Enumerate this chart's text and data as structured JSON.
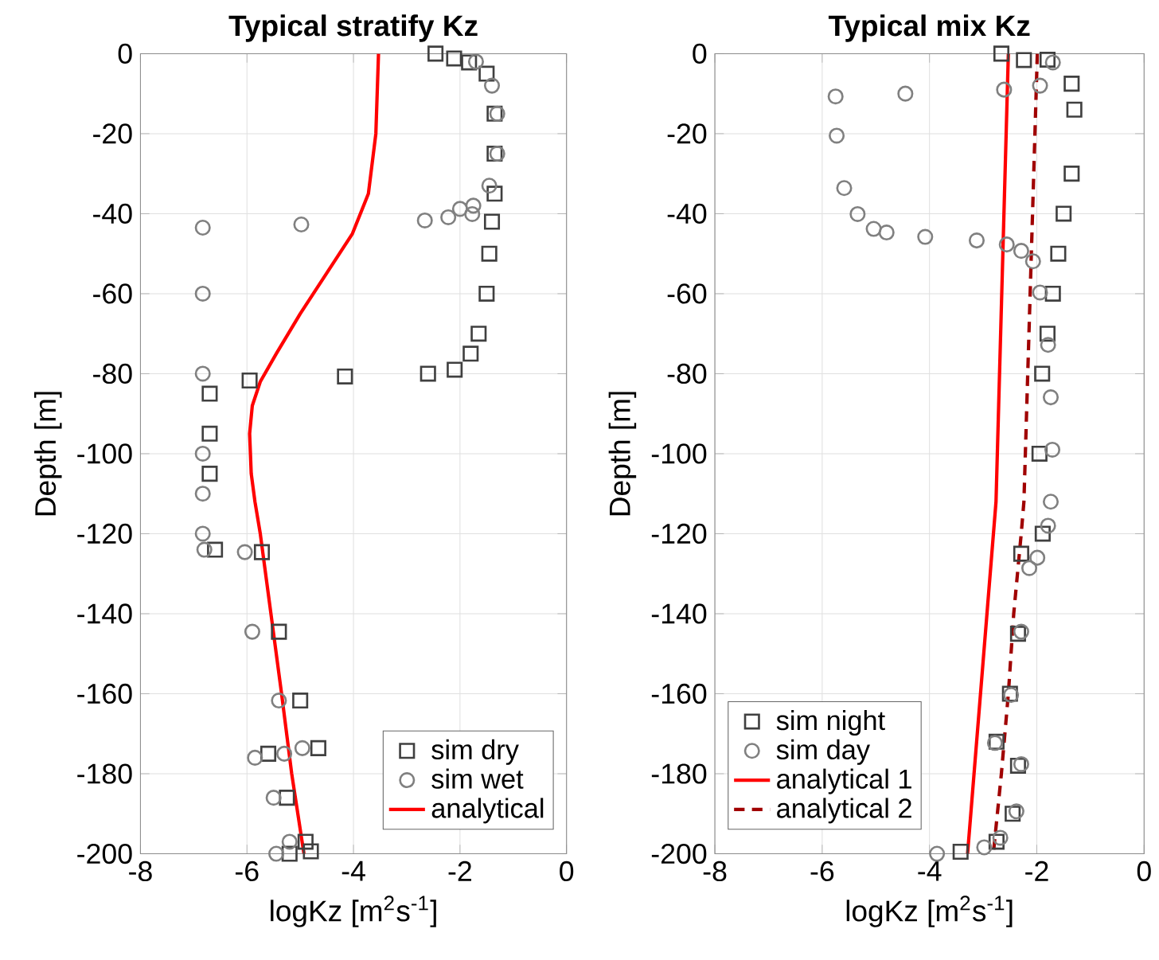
{
  "chart_data": [
    {
      "type": "scatter",
      "title": "Typical stratify Kz",
      "xlabel": "logKz [m$^{2}$s$^{-1}$]",
      "ylabel": "Depth [m]",
      "xlim": [
        -8,
        0
      ],
      "ylim": [
        -200,
        0
      ],
      "xticks": [
        -8,
        -6,
        -4,
        -2,
        0
      ],
      "yticks": [
        0,
        -20,
        -40,
        -60,
        -80,
        -100,
        -120,
        -140,
        -160,
        -180,
        -200
      ],
      "grid": true,
      "legend": "bottom right",
      "series": [
        {
          "name": "sim dry",
          "marker": "square",
          "color": "#404040",
          "x": [
            -2.46,
            -2.11,
            -1.83,
            -1.5,
            -1.35,
            -1.35,
            -1.35,
            -1.4,
            -1.45,
            -1.5,
            -1.65,
            -1.8,
            -2.1,
            -2.6,
            -4.16,
            -5.95,
            -6.7,
            -6.7,
            -6.7,
            -6.6,
            -5.72,
            -5.4,
            -5.0,
            -4.66,
            -5.6,
            -5.25,
            -4.9,
            -4.8,
            -5.2
          ],
          "values": [
            0,
            -1.2,
            -2.2,
            -5,
            -15,
            -25,
            -35,
            -42,
            -50,
            -60,
            -70,
            -75,
            -79,
            -80,
            -80.7,
            -81.7,
            -85,
            -95,
            -105,
            -124,
            -124.6,
            -144.5,
            -161.7,
            -173.6,
            -175,
            -186,
            -197,
            -199.4,
            -200
          ]
        },
        {
          "name": "sim wet",
          "marker": "circle",
          "color": "#808080",
          "x": [
            -1.7,
            -1.4,
            -1.3,
            -1.3,
            -1.45,
            -1.75,
            -1.77,
            -2.0,
            -2.22,
            -2.66,
            -4.98,
            -6.83,
            -6.83,
            -6.83,
            -6.83,
            -6.83,
            -6.83,
            -6.8,
            -6.04,
            -5.9,
            -5.4,
            -4.96,
            -5.3,
            -5.85,
            -5.5,
            -5.2,
            -5.45
          ],
          "values": [
            -2,
            -8,
            -15,
            -25,
            -33,
            -38,
            -40.1,
            -38.8,
            -40.9,
            -41.7,
            -42.7,
            -43.5,
            -60,
            -80,
            -100,
            -110,
            -120,
            -124,
            -124.6,
            -144.5,
            -161.7,
            -173.6,
            -175,
            -176,
            -186,
            -197,
            -200
          ]
        },
        {
          "name": "analytical",
          "type": "line",
          "color": "#ff0000",
          "x": [
            -3.53,
            -3.58,
            -3.72,
            -4.02,
            -4.51,
            -5.0,
            -5.45,
            -5.75,
            -5.9,
            -5.95,
            -5.92,
            -5.85,
            -5.75,
            -5.55,
            -5.35,
            -5.16,
            -4.93
          ],
          "values": [
            0,
            -20,
            -35,
            -45,
            -55,
            -65,
            -75,
            -82,
            -88,
            -95,
            -105,
            -112,
            -120,
            -140,
            -160,
            -180,
            -200
          ]
        }
      ]
    },
    {
      "type": "scatter",
      "title": "Typical mix Kz",
      "xlabel": "logKz [m$^{2}$s$^{-1}$]",
      "ylabel": "Depth [m]",
      "xlim": [
        -8,
        0
      ],
      "ylim": [
        -200,
        0
      ],
      "xticks": [
        -8,
        -6,
        -4,
        -2,
        0
      ],
      "yticks": [
        0,
        -20,
        -40,
        -60,
        -80,
        -100,
        -120,
        -140,
        -160,
        -180,
        -200
      ],
      "grid": true,
      "legend": "bottom left",
      "series": [
        {
          "name": "sim night",
          "marker": "square",
          "color": "#404040",
          "x": [
            -2.66,
            -2.24,
            -1.8,
            -1.35,
            -1.3,
            -1.35,
            -1.5,
            -1.6,
            -1.7,
            -1.8,
            -1.9,
            -1.95,
            -1.89,
            -2.29,
            -2.35,
            -2.5,
            -2.75,
            -2.35,
            -2.45,
            -2.75,
            -3.42
          ],
          "values": [
            0,
            -1.6,
            -1.5,
            -7.5,
            -14,
            -30,
            -40,
            -50,
            -60,
            -70,
            -80,
            -100,
            -120,
            -125,
            -145,
            -160,
            -172,
            -178,
            -190,
            -197,
            -199.5
          ]
        },
        {
          "name": "sim day",
          "marker": "circle",
          "color": "#808080",
          "x": [
            -1.7,
            -1.94,
            -2.61,
            -4.45,
            -5.75,
            -5.73,
            -5.59,
            -5.34,
            -5.04,
            -4.8,
            -4.08,
            -3.12,
            -2.56,
            -2.29,
            -2.07,
            -1.94,
            -1.79,
            -1.74,
            -1.71,
            -1.74,
            -1.79,
            -1.99,
            -2.14,
            -2.29,
            -2.48,
            -2.78,
            -2.29,
            -2.38,
            -2.68,
            -2.98,
            -3.86
          ],
          "values": [
            -2.2,
            -8,
            -9,
            -10,
            -10.7,
            -20.5,
            -33.6,
            -40.1,
            -43.8,
            -44.7,
            -45.8,
            -46.7,
            -47.7,
            -49.3,
            -51.9,
            -59.7,
            -72.8,
            -85.9,
            -99,
            -112,
            -118,
            -126,
            -128.6,
            -144.5,
            -160.3,
            -172.3,
            -177.6,
            -189.4,
            -196,
            -198.4,
            -200
          ]
        },
        {
          "name": "analytical 1",
          "type": "line",
          "line_style": "solid",
          "color": "#ff0000",
          "x": [
            -2.53,
            -2.76,
            -3.29
          ],
          "values": [
            0,
            -112,
            -200
          ]
        },
        {
          "name": "analytical 2",
          "type": "line",
          "line_style": "dashed",
          "color": "#a00000",
          "x": [
            -1.99,
            -2.24,
            -2.29,
            -2.43,
            -2.53,
            -2.66,
            -2.81
          ],
          "values": [
            0,
            -112,
            -120,
            -140,
            -160,
            -180,
            -200
          ]
        }
      ]
    }
  ]
}
